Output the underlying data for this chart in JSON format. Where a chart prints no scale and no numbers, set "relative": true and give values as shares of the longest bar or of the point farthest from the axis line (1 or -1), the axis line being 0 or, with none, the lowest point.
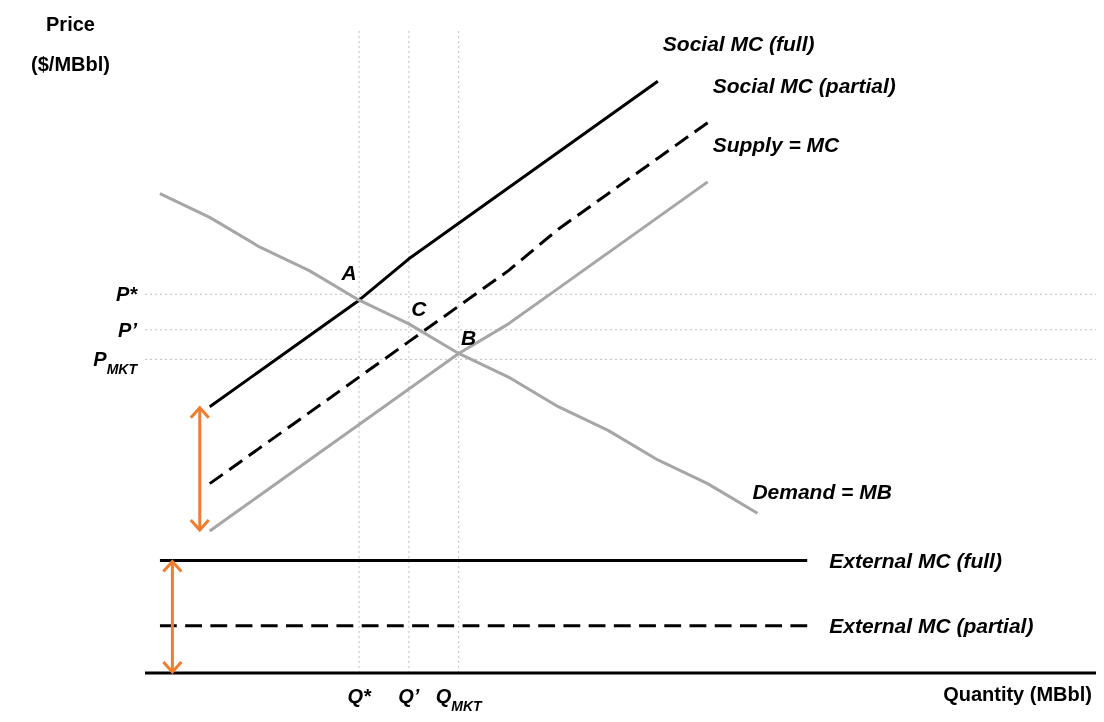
{
  "chart_data": {
    "type": "line",
    "relative": true,
    "ylabel": "Price ($/MBbl)",
    "categories": [
      null,
      null,
      null,
      null,
      "Q*",
      "Q’",
      "Q$_{MKT}$",
      null,
      null,
      null,
      null,
      null,
      null,
      null
    ],
    "series": [
      {
        "name": "Social MC (full)",
        "color": "#000000",
        "values": [
          null,
          0.45,
          0.51,
          0.57,
          0.63,
          0.7,
          0.76,
          0.82,
          0.88,
          0.94,
          1,
          null,
          null,
          null
        ]
      },
      {
        "name": "Social MC (partial)",
        "color": "#000000",
        "line_style": "dashed",
        "values": [
          null,
          0.32,
          0.38,
          0.44,
          0.5,
          0.56,
          0.62,
          0.68,
          0.75,
          0.81,
          0.87,
          0.93,
          null,
          null
        ]
      },
      {
        "name": "Supply = MC",
        "color": "#a6a6a6",
        "values": [
          null,
          0.24,
          0.3,
          0.36,
          0.42,
          0.48,
          0.54,
          0.59,
          0.65,
          0.71,
          0.77,
          0.83,
          null,
          null
        ]
      },
      {
        "name": "Demand = MB",
        "color": "#a6a6a6",
        "values": [
          0.81,
          0.77,
          0.72,
          0.68,
          0.63,
          0.59,
          0.54,
          0.5,
          0.45,
          0.41,
          0.36,
          0.32,
          0.27,
          null
        ]
      },
      {
        "name": "External MC (full)",
        "color": "#000000",
        "values": [
          0.19,
          0.19,
          0.19,
          0.19,
          0.19,
          0.19,
          0.19,
          0.19,
          0.19,
          0.19,
          0.19,
          0.19,
          0.19,
          0.19
        ]
      },
      {
        "name": "External MC (partial)",
        "color": "#000000",
        "line_style": "dashed",
        "values": [
          0.08,
          0.08,
          0.08,
          0.08,
          0.08,
          0.08,
          0.08,
          0.08,
          0.08,
          0.08,
          0.08,
          0.08,
          0.08,
          0.08
        ]
      }
    ],
    "ref_lines": [
      {
        "axis": "y",
        "value": 0.64,
        "label": "P*",
        "color": "#bfbfbf",
        "line_style": "dotted"
      },
      {
        "axis": "y",
        "value": 0.58,
        "label": "P’",
        "color": "#bfbfbf",
        "line_style": "dotted"
      },
      {
        "axis": "y",
        "value": 0.53,
        "label": "P$_{MKT}$",
        "color": "#bfbfbf",
        "line_style": "dotted"
      },
      {
        "axis": "x",
        "value": "Q*",
        "color": "#bfbfbf",
        "line_style": "dotted"
      },
      {
        "axis": "x",
        "value": "Q’",
        "color": "#bfbfbf",
        "line_style": "dotted"
      },
      {
        "axis": "x",
        "value": "Q$_{MKT}$",
        "color": "#bfbfbf",
        "line_style": "dotted"
      }
    ],
    "annotations": [
      {
        "text": "A",
        "x": "Q*",
        "y": 0.64
      },
      {
        "text": "C",
        "x": "Q’",
        "y": 0.58
      },
      {
        "text": "B",
        "x": "Q$_{MKT}$",
        "y": 0.53
      },
      "Quantity (MBbl)"
    ]
  }
}
